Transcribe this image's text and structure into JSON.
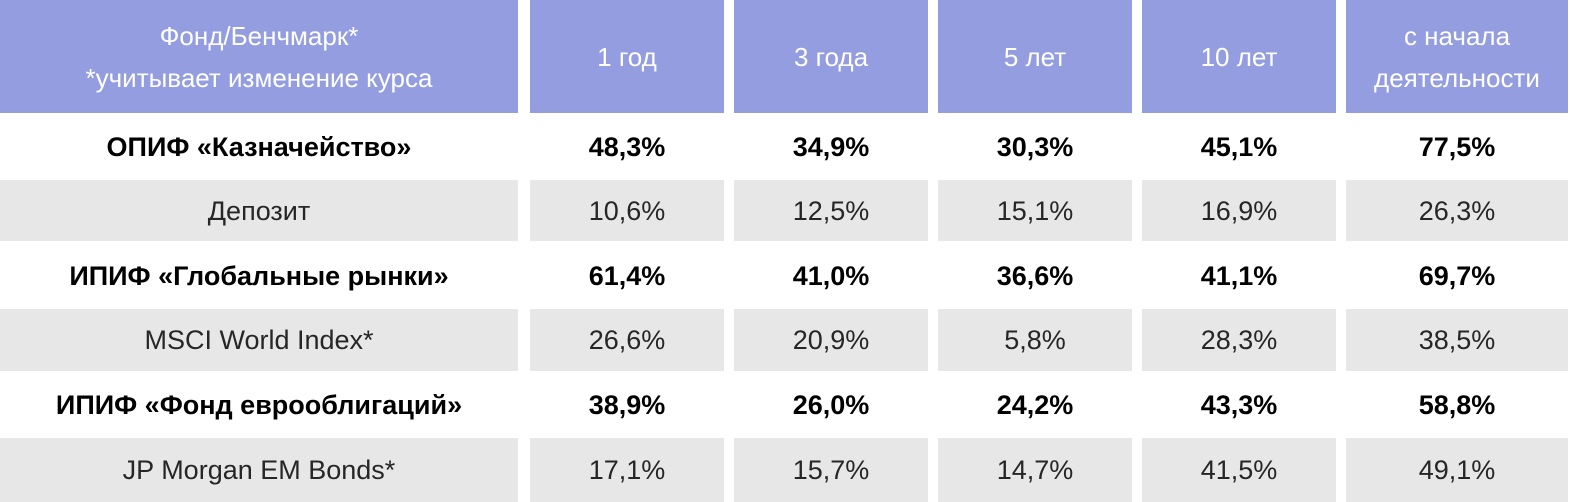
{
  "header": {
    "name_line1": "Фонд/Бенчмарк*",
    "name_line2": "*учитывает изменение курса",
    "periods": [
      "1 год",
      "3 года",
      "5 лет",
      "10 лет"
    ],
    "since_line1": "с начала",
    "since_line2": "деятельности"
  },
  "rows": [
    {
      "name": "ОПИФ «Казначейство»",
      "values": [
        "48,3%",
        "34,9%",
        "30,3%",
        "45,1%",
        "77,5%"
      ]
    },
    {
      "name": "Депозит",
      "values": [
        "10,6%",
        "12,5%",
        "15,1%",
        "16,9%",
        "26,3%"
      ]
    },
    {
      "name": "ИПИФ «Глобальные рынки»",
      "values": [
        "61,4%",
        "41,0%",
        "36,6%",
        "41,1%",
        "69,7%"
      ]
    },
    {
      "name": "MSCI World Index*",
      "values": [
        "26,6%",
        "20,9%",
        "5,8%",
        "28,3%",
        "38,5%"
      ]
    },
    {
      "name": "ИПИФ «Фонд еврооблигаций»",
      "values": [
        "38,9%",
        "26,0%",
        "24,2%",
        "43,3%",
        "58,8%"
      ]
    },
    {
      "name": "JP Morgan EM Bonds*",
      "values": [
        "17,1%",
        "15,7%",
        "14,7%",
        "41,5%",
        "49,1%"
      ]
    }
  ],
  "colors": {
    "header_bg": "#939ddf",
    "header_text": "#ffffff",
    "fund_row_bg": "#ffffff",
    "benchmark_row_bg": "#e7e7e7"
  }
}
